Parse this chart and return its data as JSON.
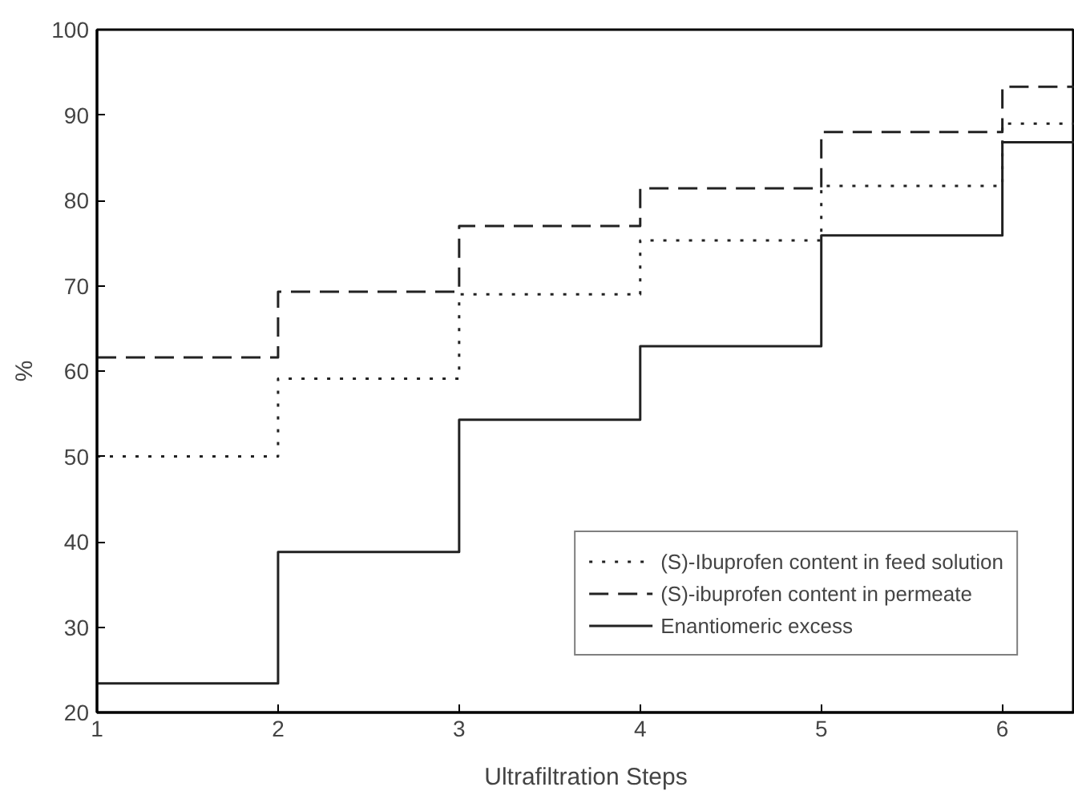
{
  "chart_data": {
    "type": "step",
    "xlabel": "Ultrafiltration Steps",
    "ylabel": "%",
    "x": [
      1,
      2,
      3,
      4,
      5,
      6
    ],
    "xlim": [
      1,
      6.4
    ],
    "xticks": [
      1,
      2,
      3,
      4,
      5,
      6
    ],
    "ylim": [
      20,
      100
    ],
    "yticks": [
      20,
      30,
      40,
      50,
      60,
      70,
      80,
      90,
      100
    ],
    "grid": false,
    "legend": "bottom right",
    "series": [
      {
        "name": "(S)-Ibuprofen content in feed solution",
        "color": "#222222",
        "line_style": "dotted",
        "values": [
          50,
          59.1,
          69.0,
          75.3,
          81.7,
          89.0
        ]
      },
      {
        "name": "(S)-ibuprofen content in permeate",
        "color": "#222222",
        "line_style": "dashed",
        "values": [
          61.6,
          69.3,
          77.0,
          81.4,
          88.0,
          93.3
        ]
      },
      {
        "name": "Enantiomeric excess",
        "color": "#222222",
        "line_style": "solid",
        "values": [
          23.4,
          38.8,
          54.3,
          62.9,
          75.9,
          86.8
        ]
      }
    ]
  }
}
